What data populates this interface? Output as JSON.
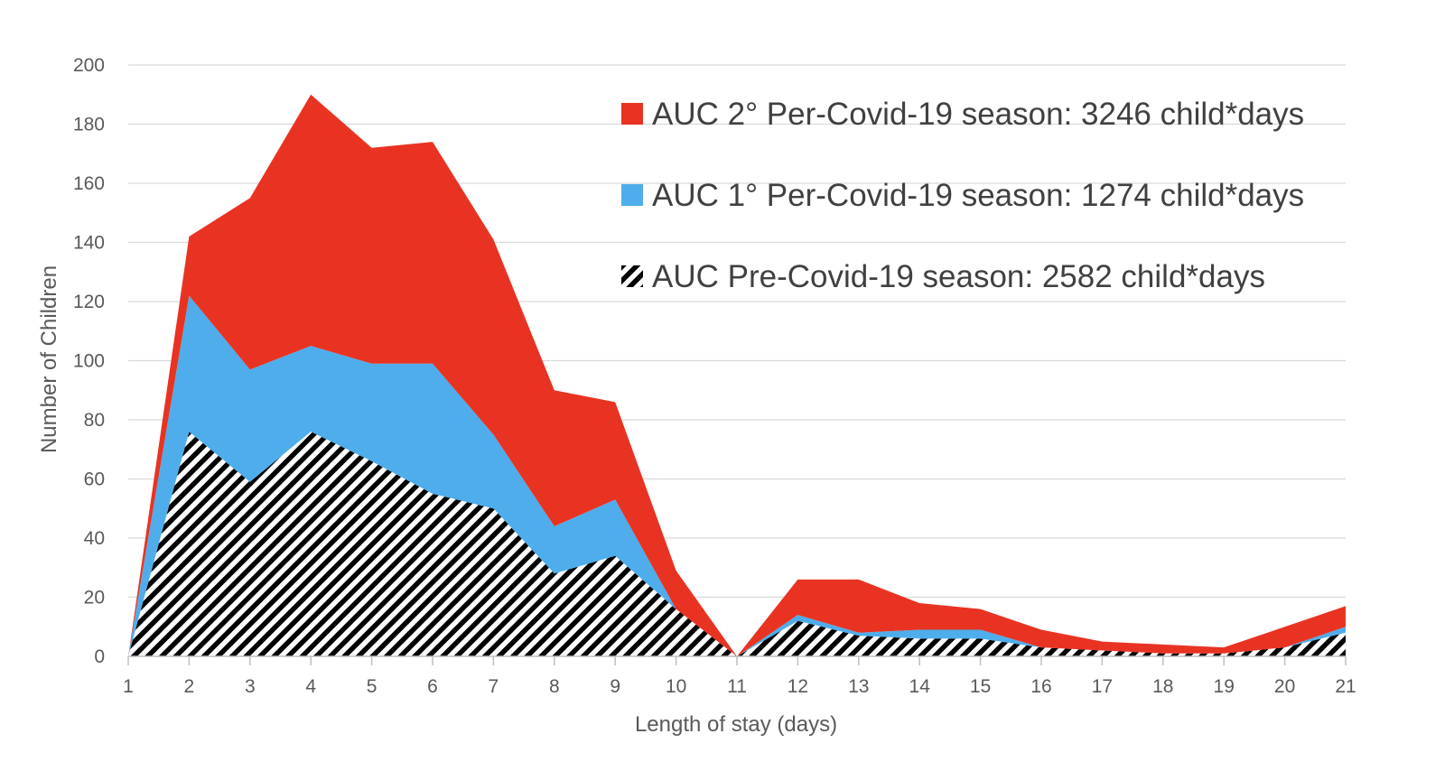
{
  "chart_data": {
    "type": "area",
    "stacked": true,
    "xlabel": "Length of stay (days)",
    "ylabel": "Number of Children",
    "ylim": [
      0,
      200
    ],
    "yticks": [
      0,
      20,
      40,
      60,
      80,
      100,
      120,
      140,
      160,
      180,
      200
    ],
    "grid": true,
    "legend_position": "top-right",
    "x": [
      "1",
      "2",
      "3",
      "4",
      "5",
      "6",
      "7",
      "8",
      "9",
      "10",
      "11",
      "12",
      "13",
      "14",
      "15",
      "16",
      "17",
      "18",
      "19",
      "20",
      "21"
    ],
    "series": [
      {
        "name": "AUC Pre-Covid-19 season: 2582 child*days",
        "pattern": "black-white-diagonal-hatch",
        "color": "#000000",
        "values": [
          0,
          76,
          59,
          76,
          66,
          55,
          50,
          28,
          34,
          16,
          0,
          12,
          7,
          6,
          6,
          3,
          2,
          1,
          1,
          3,
          8
        ]
      },
      {
        "name": "AUC 1° Per-Covid-19 season: 1274 child*days",
        "color": "#4EADEA",
        "values": [
          0,
          46,
          38,
          29,
          33,
          44,
          25,
          16,
          19,
          0,
          0,
          2,
          1,
          3,
          3,
          0,
          0,
          0,
          0,
          0,
          2
        ]
      },
      {
        "name": "AUC 2° Per-Covid-19 season: 3246 child*days",
        "color": "#E83323",
        "values": [
          0,
          20,
          58,
          85,
          73,
          75,
          66,
          46,
          33,
          13,
          0,
          12,
          18,
          9,
          7,
          6,
          3,
          3,
          2,
          7,
          7
        ]
      }
    ],
    "legend_order": [
      2,
      1,
      0
    ]
  }
}
